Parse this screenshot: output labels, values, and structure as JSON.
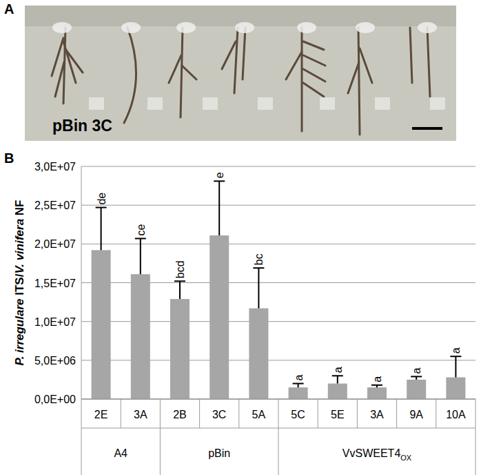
{
  "panel_labels": [
    "A",
    "B"
  ],
  "photo": {
    "caption": "pBin 3C"
  },
  "chart_data": {
    "type": "bar",
    "y_label": "P. irregulare ITS/V. vinifera NF",
    "categories": [
      "2E",
      "3A",
      "2B",
      "3C",
      "5A",
      "5C",
      "5E",
      "3A",
      "9A",
      "10A"
    ],
    "values": [
      19200000,
      16100000,
      12900000,
      21100000,
      11700000,
      1500000,
      2000000,
      1500000,
      2500000,
      2800000
    ],
    "errors": [
      5500000,
      4600000,
      2300000,
      7000000,
      5200000,
      500000,
      1000000,
      300000,
      400000,
      2700000
    ],
    "significance": [
      "de",
      "ce",
      "bcd",
      "e",
      "bc",
      "a",
      "a",
      "a",
      "a",
      "a"
    ],
    "groups": [
      {
        "label": "A4",
        "count": 2
      },
      {
        "label": "pBin",
        "count": 3
      },
      {
        "label": "VvSWEET4",
        "subscript": "OX",
        "count": 5
      }
    ],
    "color": "#a6a6a6",
    "ylim": [
      0,
      30000000
    ],
    "yticks": [
      {
        "value": 0,
        "label": "0,0E+00"
      },
      {
        "value": 5000000,
        "label": "5,0E+06"
      },
      {
        "value": 10000000,
        "label": "1,0E+07"
      },
      {
        "value": 15000000,
        "label": "1,5E+07"
      },
      {
        "value": 20000000,
        "label": "2,0E+07"
      },
      {
        "value": 25000000,
        "label": "2,5E+07"
      },
      {
        "value": 30000000,
        "label": "3,0E+07"
      }
    ],
    "grid": true
  }
}
